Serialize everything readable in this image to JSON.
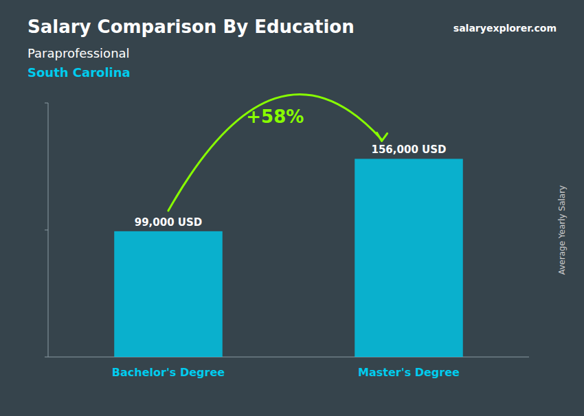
{
  "chart_data": {
    "type": "bar",
    "title": "Salary Comparison By Education",
    "subtitle": "Paraprofessional",
    "annotations": [
      "South Carolina",
      "+58%",
      "salaryexplorer.com"
    ],
    "ylabel": "Average Yearly Salary",
    "categories": [
      "Bachelor's Degree",
      "Master's Degree"
    ],
    "values": [
      99000,
      156000
    ],
    "value_labels": [
      "99,000 USD",
      "156,000 USD"
    ],
    "data_labels": true,
    "color": "#00ccee",
    "ylim": [
      0,
      200000
    ],
    "yticks": [
      0,
      100000,
      200000
    ],
    "tick_labels": false,
    "grid": false
  }
}
